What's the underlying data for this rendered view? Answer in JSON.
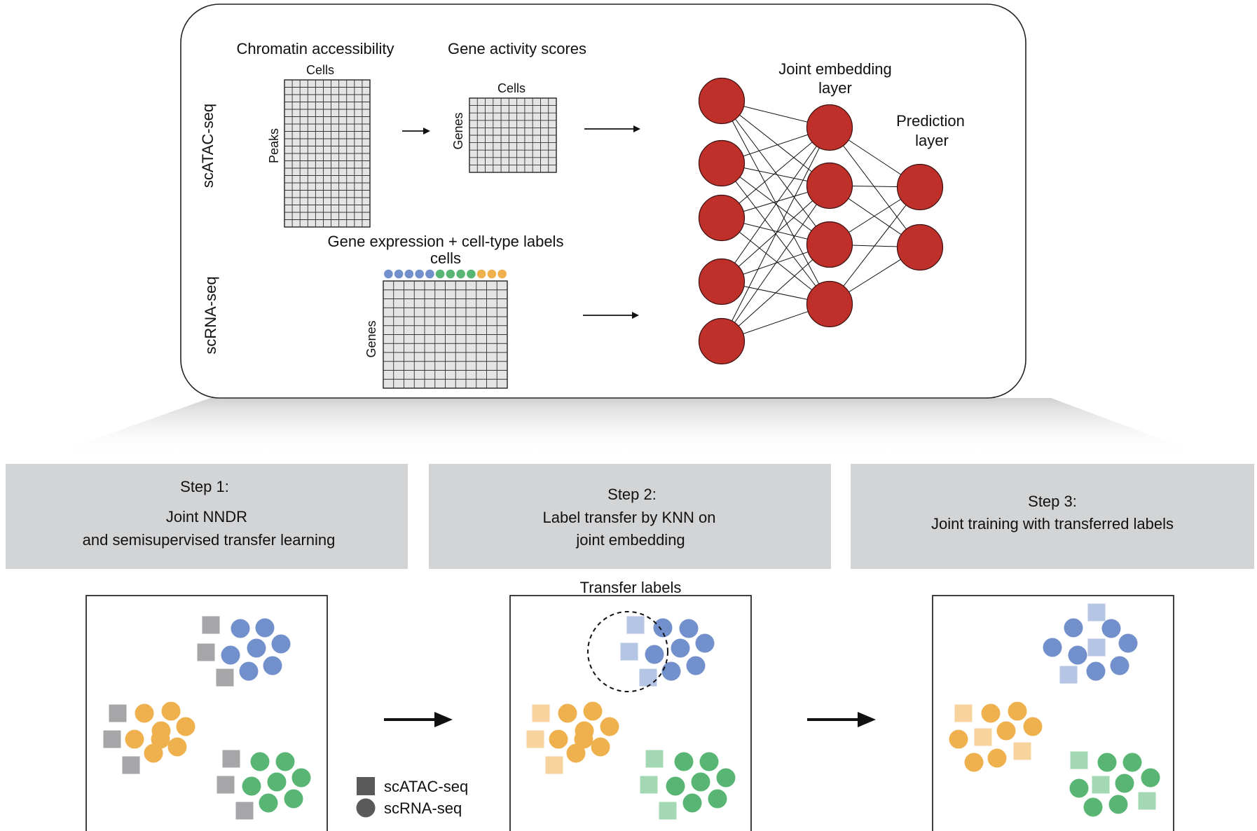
{
  "top_panel": {
    "row_labels": {
      "atac": "scATAC-seq",
      "rna": "scRNA-seq"
    },
    "atac_matrix": {
      "title": "Chromatin accessibility",
      "col_label": "Cells",
      "row_label": "Peaks"
    },
    "gene_activity": {
      "title": "Gene activity scores",
      "col_label": "Cells",
      "row_label": "Genes"
    },
    "rna_matrix": {
      "title": "Gene expression + cell-type labels",
      "col_label": "cells",
      "row_label": "Genes"
    },
    "network": {
      "embedding_label": [
        "Joint embedding",
        "layer"
      ],
      "prediction_label": [
        "Prediction",
        "layer"
      ]
    }
  },
  "steps": [
    {
      "lines": [
        "Step 1:",
        "Joint NNDR",
        "and semisupervised transfer learning"
      ]
    },
    {
      "lines": [
        "Step 2:",
        "Label transfer by KNN on",
        "joint embedding"
      ]
    },
    {
      "lines": [
        "Step 3:",
        "Joint training with transferred labels"
      ]
    }
  ],
  "transfer_label": "Transfer labels",
  "legend": {
    "atac": "scATAC-seq",
    "rna": "scRNA-seq"
  },
  "colors": {
    "blue": "#7190cc",
    "orange": "#efb04e",
    "green": "#58b574",
    "gray": "#a6a6a9",
    "light_blue": "#b4c5e6",
    "light_orange": "#f7d39e",
    "light_green": "#a4d8b4",
    "node_red": "#c0302b",
    "step_bg": "#d3d4d6",
    "legend_dark": "#5a5a5a"
  }
}
